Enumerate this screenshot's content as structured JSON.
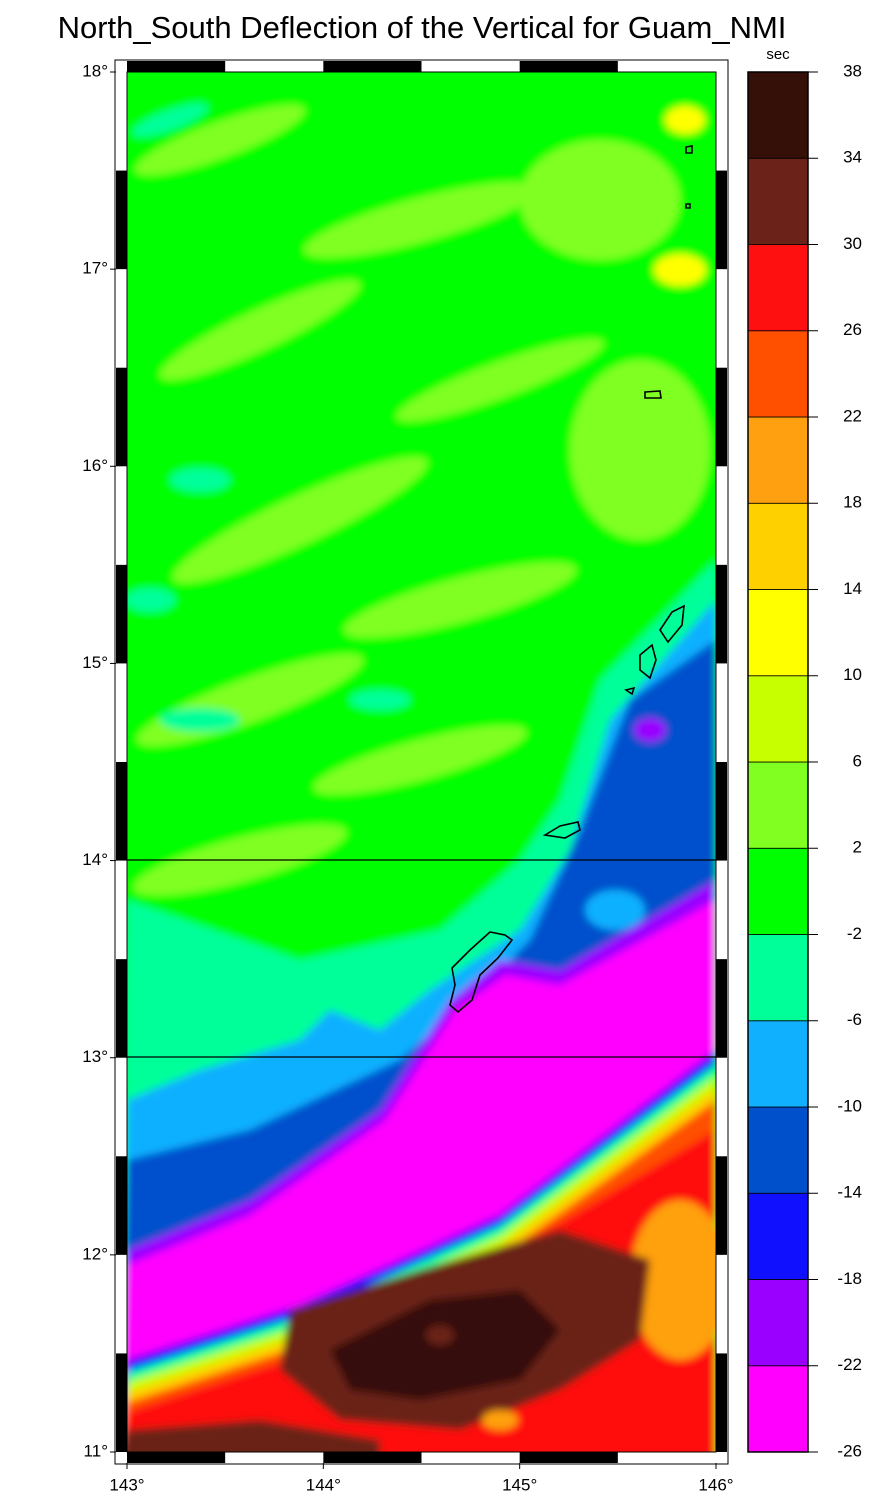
{
  "title": "North_South Deflection of the Vertical for Guam_NMI",
  "map": {
    "xlim": [
      143,
      146
    ],
    "ylim": [
      11,
      18
    ],
    "xticks": [
      {
        "value": 143,
        "label": "143°"
      },
      {
        "value": 144,
        "label": "144°"
      },
      {
        "value": 145,
        "label": "145°"
      },
      {
        "value": 146,
        "label": "146°"
      }
    ],
    "yticks": [
      {
        "value": 11,
        "label": "11°"
      },
      {
        "value": 12,
        "label": "12°"
      },
      {
        "value": 13,
        "label": "13°"
      },
      {
        "value": 14,
        "label": "14°"
      },
      {
        "value": 15,
        "label": "15°"
      },
      {
        "value": 16,
        "label": "16°"
      },
      {
        "value": 17,
        "label": "17°"
      },
      {
        "value": 18,
        "label": "18°"
      }
    ]
  },
  "colorbar": {
    "unit": "sec",
    "ticks": [
      -26,
      -22,
      -18,
      -14,
      -10,
      -6,
      -2,
      2,
      6,
      10,
      14,
      18,
      22,
      26,
      30,
      34,
      38
    ],
    "colors": [
      "#ff00ff",
      "#9900ff",
      "#1010ff",
      "#0050cc",
      "#10b0ff",
      "#00ff99",
      "#00ff00",
      "#80ff20",
      "#c8ff00",
      "#ffff00",
      "#ffd000",
      "#ffa010",
      "#ff5000",
      "#ff1010",
      "#6b2218",
      "#341008"
    ]
  }
}
